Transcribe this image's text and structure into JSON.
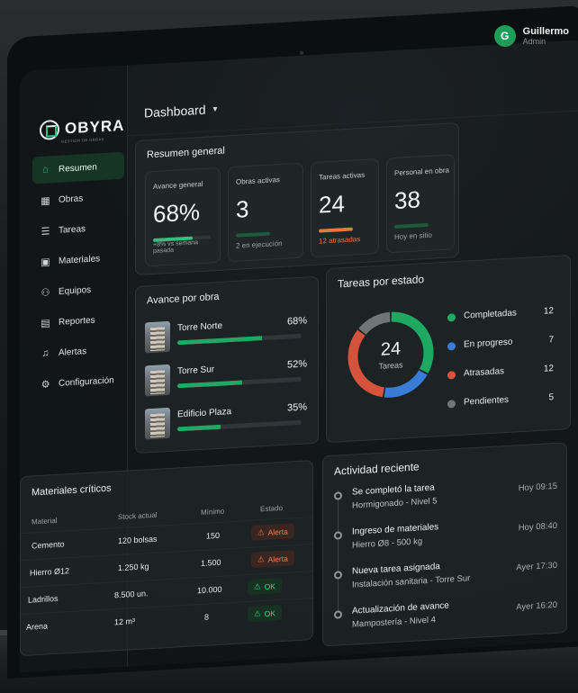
{
  "app": {
    "brand": "OBYRA",
    "tagline": "GESTIÓN DE OBRAS"
  },
  "user": {
    "initial": "G",
    "name": "Guillermo",
    "role": "Admin"
  },
  "header": {
    "title": "Dashboard"
  },
  "sidebar": {
    "items": [
      {
        "label": "Resumen",
        "icon": "home-icon",
        "active": true
      },
      {
        "label": "Obras",
        "icon": "building-icon"
      },
      {
        "label": "Tareas",
        "icon": "clipboard-icon"
      },
      {
        "label": "Materiales",
        "icon": "boxes-icon"
      },
      {
        "label": "Equipos",
        "icon": "people-icon"
      },
      {
        "label": "Reportes",
        "icon": "report-icon"
      },
      {
        "label": "Alertas",
        "icon": "bell-icon"
      },
      {
        "label": "Configuración",
        "icon": "gear-icon"
      }
    ]
  },
  "summary": {
    "title": "Resumen general",
    "kpis": [
      {
        "label": "Avance general",
        "value": "68%",
        "sub": "+8% vs semana pasada",
        "progress": 0.68
      },
      {
        "label": "Obras activas",
        "value": "3",
        "sub": "2 en ejecución"
      },
      {
        "label": "Tareas activas",
        "value": "24",
        "sub": "12 atrasadas"
      },
      {
        "label": "Personal en obra",
        "value": "38",
        "sub": "Hoy en sitio"
      }
    ]
  },
  "progress": {
    "title": "Avance por obra",
    "items": [
      {
        "name": "Torre Norte",
        "pct": "68%",
        "value": 0.68
      },
      {
        "name": "Torre Sur",
        "pct": "52%",
        "value": 0.52
      },
      {
        "name": "Edificio Plaza",
        "pct": "35%",
        "value": 0.35
      }
    ]
  },
  "tasks": {
    "title": "Tareas por estado",
    "total": "24",
    "total_label": "Tareas",
    "states": [
      {
        "name": "Completadas",
        "value": 12,
        "color": "#1fa862"
      },
      {
        "name": "En progreso",
        "value": 7,
        "color": "#3a7bd5"
      },
      {
        "name": "Atrasadas",
        "value": 12,
        "color": "#d5533a"
      },
      {
        "name": "Pendientes",
        "value": 5,
        "color": "#6f7675"
      }
    ]
  },
  "materials": {
    "title": "Materiales críticos",
    "columns": [
      "Material",
      "Stock actual",
      "Mínimo",
      "Estado"
    ],
    "rows": [
      {
        "material": "Cemento",
        "stock": "120 bolsas",
        "min": "150",
        "status": "Alerta",
        "kind": "alert"
      },
      {
        "material": "Hierro Ø12",
        "stock": "1.250 kg",
        "min": "1.500",
        "status": "Alerta",
        "kind": "alert"
      },
      {
        "material": "Ladrillos",
        "stock": "8.500 un.",
        "min": "10.000",
        "status": "OK",
        "kind": "ok"
      },
      {
        "material": "Arena",
        "stock": "12 m³",
        "min": "8",
        "status": "OK",
        "kind": "ok"
      }
    ]
  },
  "activity": {
    "title": "Actividad reciente",
    "items": [
      {
        "title": "Se completó la tarea",
        "sub": "Hormigonado - Nivel 5",
        "time": "Hoy 09:15"
      },
      {
        "title": "Ingreso de materiales",
        "sub": "Hierro Ø8 - 500 kg",
        "time": "Hoy 08:40"
      },
      {
        "title": "Nueva tarea asignada",
        "sub": "Instalación sanitaria - Torre Sur",
        "time": "Ayer 17:30"
      },
      {
        "title": "Actualización de avance",
        "sub": "Mampostería - Nivel 4",
        "time": "Ayer 16:20"
      }
    ]
  }
}
